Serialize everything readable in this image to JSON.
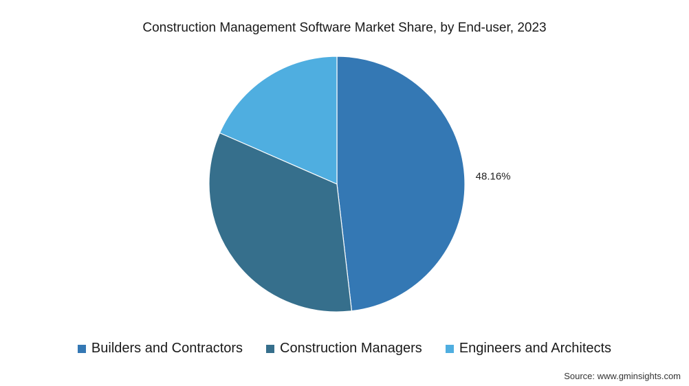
{
  "chart_data": {
    "type": "pie",
    "title": "Construction Management Software Market Share, by End-user, 2023",
    "slices": [
      {
        "name": "Builders and Contractors",
        "value": 48.16,
        "label": "48.16%",
        "color": "#3478b4"
      },
      {
        "name": "Construction Managers",
        "value": 33.4,
        "label": "",
        "color": "#366f8c"
      },
      {
        "name": "Engineers and Architects",
        "value": 18.44,
        "label": "",
        "color": "#4faee0"
      }
    ],
    "legend_position": "bottom",
    "source": "Source: www.gminsights.com"
  }
}
